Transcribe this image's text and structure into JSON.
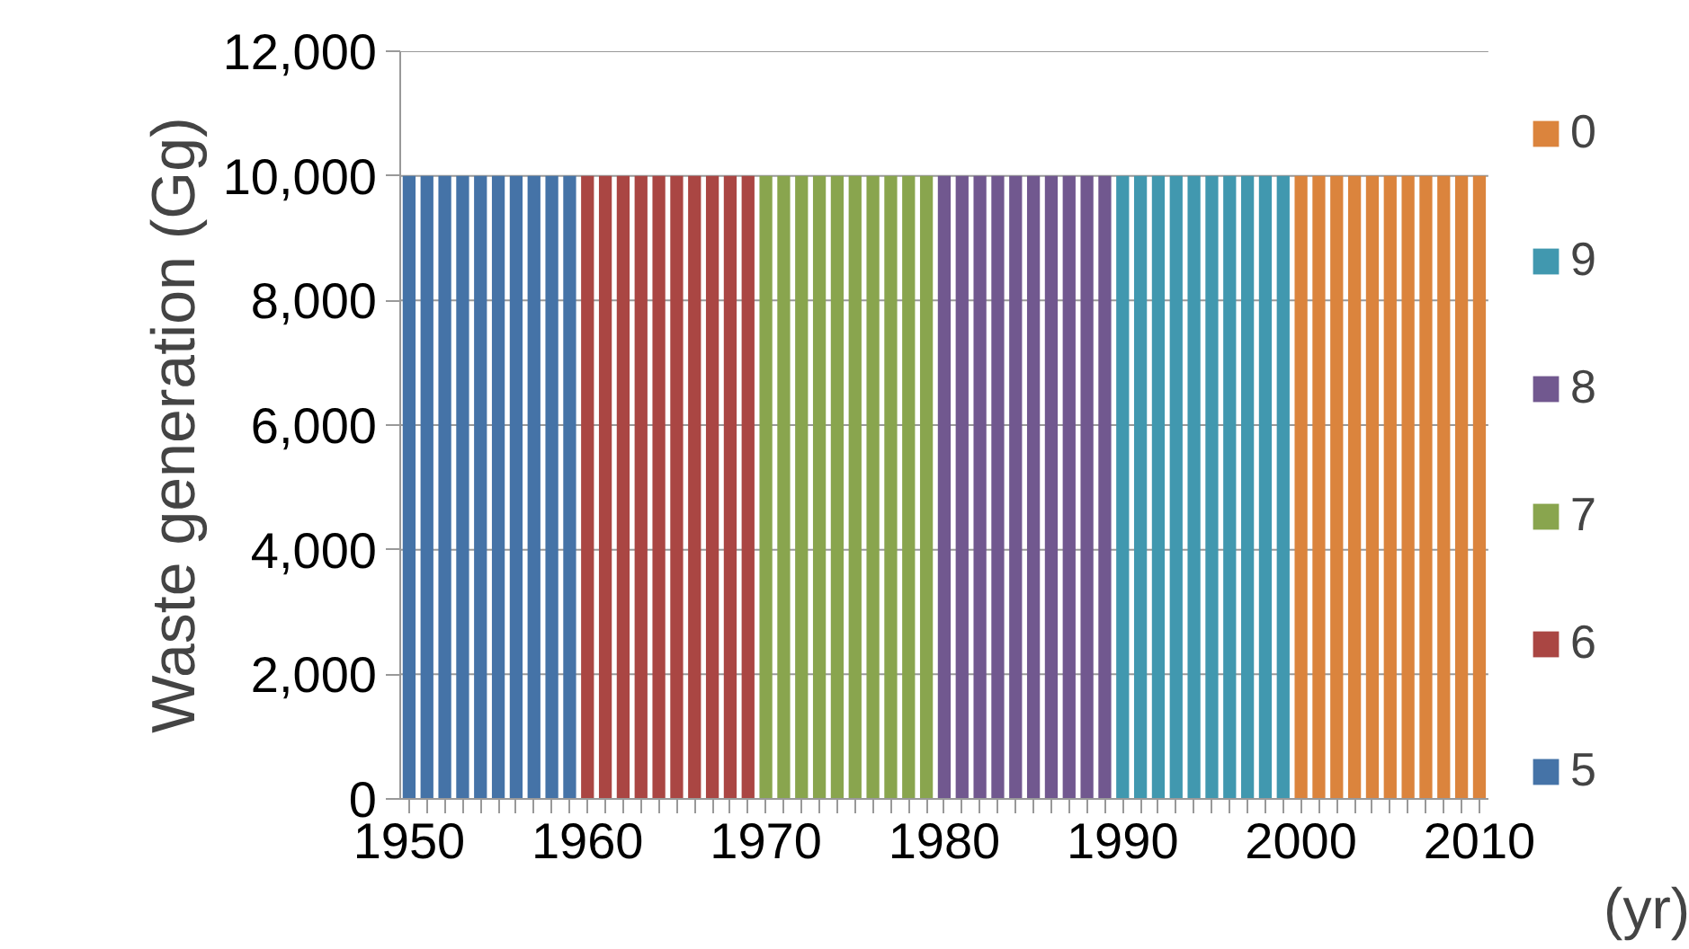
{
  "chart_data": {
    "type": "bar",
    "ylabel": "Waste generation (Gg)",
    "xlabel": "(yr)",
    "categories": [
      "1950",
      null,
      null,
      null,
      null,
      null,
      null,
      null,
      null,
      null,
      "1960",
      null,
      null,
      null,
      null,
      null,
      null,
      null,
      null,
      null,
      "1970",
      null,
      null,
      null,
      null,
      null,
      null,
      null,
      null,
      null,
      "1980",
      null,
      null,
      null,
      null,
      null,
      null,
      null,
      null,
      null,
      "1990",
      null,
      null,
      null,
      null,
      null,
      null,
      null,
      null,
      null,
      "2000",
      null,
      null,
      null,
      null,
      null,
      null,
      null,
      null,
      null,
      "2010"
    ],
    "series": [
      {
        "name": "5",
        "color": "#4573a7",
        "values": [
          10000,
          10000,
          10000,
          10000,
          10000,
          10000,
          10000,
          10000,
          10000,
          10000,
          null,
          null,
          null,
          null,
          null,
          null,
          null,
          null,
          null,
          null,
          null,
          null,
          null,
          null,
          null,
          null,
          null,
          null,
          null,
          null,
          null,
          null,
          null,
          null,
          null,
          null,
          null,
          null,
          null,
          null,
          null,
          null,
          null,
          null,
          null,
          null,
          null,
          null,
          null,
          null,
          null,
          null,
          null,
          null,
          null,
          null,
          null,
          null,
          null,
          null,
          null
        ]
      },
      {
        "name": "6",
        "color": "#aa4643",
        "values": [
          null,
          null,
          null,
          null,
          null,
          null,
          null,
          null,
          null,
          null,
          10000,
          10000,
          10000,
          10000,
          10000,
          10000,
          10000,
          10000,
          10000,
          10000,
          null,
          null,
          null,
          null,
          null,
          null,
          null,
          null,
          null,
          null,
          null,
          null,
          null,
          null,
          null,
          null,
          null,
          null,
          null,
          null,
          null,
          null,
          null,
          null,
          null,
          null,
          null,
          null,
          null,
          null,
          null,
          null,
          null,
          null,
          null,
          null,
          null,
          null,
          null,
          null,
          null
        ]
      },
      {
        "name": "7",
        "color": "#89a54e",
        "values": [
          null,
          null,
          null,
          null,
          null,
          null,
          null,
          null,
          null,
          null,
          null,
          null,
          null,
          null,
          null,
          null,
          null,
          null,
          null,
          null,
          10000,
          10000,
          10000,
          10000,
          10000,
          10000,
          10000,
          10000,
          10000,
          10000,
          null,
          null,
          null,
          null,
          null,
          null,
          null,
          null,
          null,
          null,
          null,
          null,
          null,
          null,
          null,
          null,
          null,
          null,
          null,
          null,
          null,
          null,
          null,
          null,
          null,
          null,
          null,
          null,
          null,
          null,
          null
        ]
      },
      {
        "name": "8",
        "color": "#71588f",
        "values": [
          null,
          null,
          null,
          null,
          null,
          null,
          null,
          null,
          null,
          null,
          null,
          null,
          null,
          null,
          null,
          null,
          null,
          null,
          null,
          null,
          null,
          null,
          null,
          null,
          null,
          null,
          null,
          null,
          null,
          null,
          10000,
          10000,
          10000,
          10000,
          10000,
          10000,
          10000,
          10000,
          10000,
          10000,
          null,
          null,
          null,
          null,
          null,
          null,
          null,
          null,
          null,
          null,
          null,
          null,
          null,
          null,
          null,
          null,
          null,
          null,
          null,
          null,
          null
        ]
      },
      {
        "name": "9",
        "color": "#4198af",
        "values": [
          null,
          null,
          null,
          null,
          null,
          null,
          null,
          null,
          null,
          null,
          null,
          null,
          null,
          null,
          null,
          null,
          null,
          null,
          null,
          null,
          null,
          null,
          null,
          null,
          null,
          null,
          null,
          null,
          null,
          null,
          null,
          null,
          null,
          null,
          null,
          null,
          null,
          null,
          null,
          null,
          10000,
          10000,
          10000,
          10000,
          10000,
          10000,
          10000,
          10000,
          10000,
          10000,
          null,
          null,
          null,
          null,
          null,
          null,
          null,
          null,
          null,
          null,
          null
        ]
      },
      {
        "name": "0",
        "color": "#db843d",
        "values": [
          null,
          null,
          null,
          null,
          null,
          null,
          null,
          null,
          null,
          null,
          null,
          null,
          null,
          null,
          null,
          null,
          null,
          null,
          null,
          null,
          null,
          null,
          null,
          null,
          null,
          null,
          null,
          null,
          null,
          null,
          null,
          null,
          null,
          null,
          null,
          null,
          null,
          null,
          null,
          null,
          null,
          null,
          null,
          null,
          null,
          null,
          null,
          null,
          null,
          null,
          10000,
          10000,
          10000,
          10000,
          10000,
          10000,
          10000,
          10000,
          10000,
          10000,
          10000
        ]
      }
    ],
    "ylim": [
      0,
      12000
    ],
    "yticks": [
      {
        "value": 0,
        "label": "0"
      },
      {
        "value": 2000,
        "label": "2,000"
      },
      {
        "value": 4000,
        "label": "4,000"
      },
      {
        "value": 6000,
        "label": "6,000"
      },
      {
        "value": 8000,
        "label": "8,000"
      },
      {
        "value": 10000,
        "label": "10,000"
      },
      {
        "value": 12000,
        "label": "12,000"
      }
    ],
    "grid": "y",
    "legend": "right"
  }
}
